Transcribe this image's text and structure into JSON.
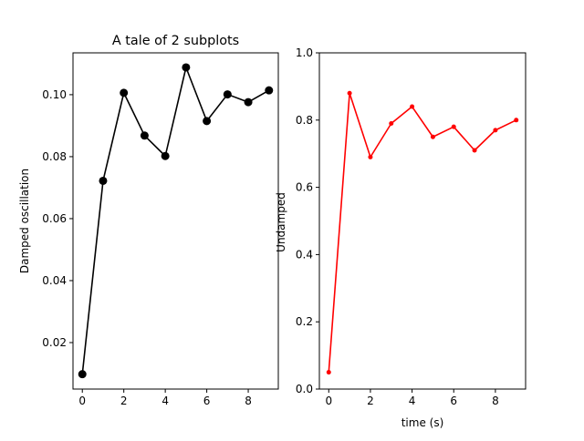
{
  "chart_data": [
    {
      "type": "line",
      "title": "A tale of 2 subplots",
      "xlabel": "",
      "ylabel": "Damped oscillation",
      "xlim": [
        -0.45,
        9.45
      ],
      "ylim": [
        0.005,
        0.1135
      ],
      "x_ticks": [
        0,
        2,
        4,
        6,
        8
      ],
      "y_ticks": [
        0.02,
        0.04,
        0.06,
        0.08,
        0.1
      ],
      "y_tick_labels": [
        "0.02",
        "0.04",
        "0.06",
        "0.08",
        "0.10"
      ],
      "grid": false,
      "legend": "none",
      "series": [
        {
          "color": "#000000",
          "marker": "circle-large",
          "x": [
            0,
            1,
            2,
            3,
            4,
            5,
            6,
            7,
            8,
            9
          ],
          "values": [
            0.0098,
            0.0722,
            0.1006,
            0.0868,
            0.0802,
            0.1088,
            0.0915,
            0.1001,
            0.0976,
            0.1014
          ]
        }
      ]
    },
    {
      "type": "line",
      "title": "",
      "xlabel": "time (s)",
      "ylabel": "Undamped",
      "xlim": [
        -0.45,
        9.45
      ],
      "ylim": [
        0.0,
        1.0
      ],
      "x_ticks": [
        0,
        2,
        4,
        6,
        8
      ],
      "y_ticks": [
        0.0,
        0.2,
        0.4,
        0.6,
        0.8,
        1.0
      ],
      "y_tick_labels": [
        "0.0",
        "0.2",
        "0.4",
        "0.6",
        "0.8",
        "1.0"
      ],
      "grid": false,
      "legend": "none",
      "series": [
        {
          "color": "#ff0000",
          "marker": "dot-small",
          "x": [
            0,
            1,
            2,
            3,
            4,
            5,
            6,
            7,
            8,
            9
          ],
          "values": [
            0.05,
            0.88,
            0.69,
            0.79,
            0.84,
            0.75,
            0.78,
            0.71,
            0.77,
            0.8
          ]
        }
      ]
    }
  ]
}
